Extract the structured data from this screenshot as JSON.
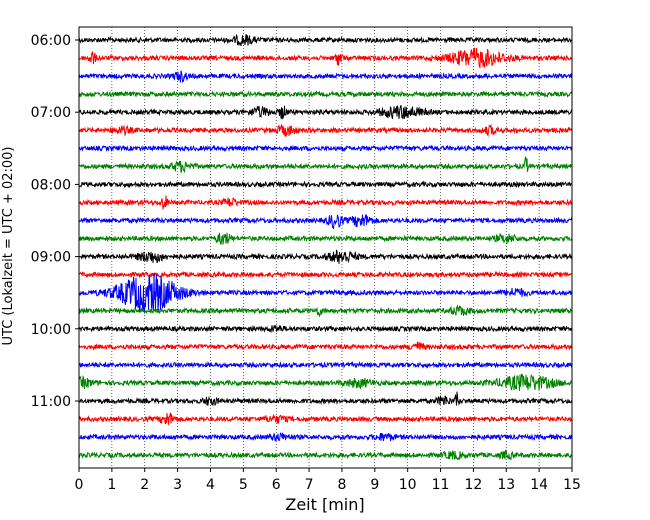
{
  "chart_data": {
    "type": "line",
    "title": "",
    "xlabel": "Zeit  [min]",
    "ylabel": "UTC (Lokalzeit = UTC + 02:00)",
    "xlim": [
      0,
      15
    ],
    "x_ticks": [
      "0",
      "1",
      "2",
      "3",
      "4",
      "5",
      "6",
      "7",
      "8",
      "9",
      "10",
      "11",
      "12",
      "13",
      "14",
      "15"
    ],
    "y_ticks": [
      "06:00",
      "07:00",
      "08:00",
      "09:00",
      "10:00",
      "11:00"
    ],
    "trace_interval_min": 15,
    "first_trace": "06:00",
    "trace_count": 24,
    "color_cycle": [
      "#000000",
      "#ff0000",
      "#0000ff",
      "#008000"
    ],
    "grid": "vertical dotted lines at every minute",
    "events": [
      {
        "trace": 0,
        "t": 5.0,
        "amp": 0.6,
        "width": 0.3
      },
      {
        "trace": 1,
        "t": 12.1,
        "amp": 1.2,
        "width": 0.8
      },
      {
        "trace": 1,
        "t": 0.4,
        "amp": 0.9,
        "width": 0.1
      },
      {
        "trace": 1,
        "t": 7.9,
        "amp": 0.9,
        "width": 0.1
      },
      {
        "trace": 2,
        "t": 3.1,
        "amp": 0.6,
        "width": 0.2
      },
      {
        "trace": 4,
        "t": 9.8,
        "amp": 0.8,
        "width": 0.6
      },
      {
        "trace": 4,
        "t": 6.2,
        "amp": 0.9,
        "width": 0.1
      },
      {
        "trace": 4,
        "t": 5.5,
        "amp": 0.6,
        "width": 0.3
      },
      {
        "trace": 5,
        "t": 1.3,
        "amp": 0.4,
        "width": 0.3
      },
      {
        "trace": 5,
        "t": 6.3,
        "amp": 0.6,
        "width": 0.3
      },
      {
        "trace": 5,
        "t": 12.5,
        "amp": 0.5,
        "width": 0.2
      },
      {
        "trace": 7,
        "t": 3.1,
        "amp": 0.6,
        "width": 0.3
      },
      {
        "trace": 7,
        "t": 13.6,
        "amp": 1.3,
        "width": 0.05
      },
      {
        "trace": 9,
        "t": 2.6,
        "amp": 0.9,
        "width": 0.1
      },
      {
        "trace": 9,
        "t": 4.6,
        "amp": 0.5,
        "width": 0.2
      },
      {
        "trace": 10,
        "t": 7.8,
        "amp": 1.0,
        "width": 0.2
      },
      {
        "trace": 10,
        "t": 8.6,
        "amp": 0.8,
        "width": 0.3
      },
      {
        "trace": 11,
        "t": 4.4,
        "amp": 0.8,
        "width": 0.2
      },
      {
        "trace": 11,
        "t": 13.0,
        "amp": 0.5,
        "width": 0.3
      },
      {
        "trace": 12,
        "t": 2.2,
        "amp": 0.7,
        "width": 0.4
      },
      {
        "trace": 12,
        "t": 8.0,
        "amp": 0.8,
        "width": 0.4
      },
      {
        "trace": 14,
        "t": 2.1,
        "amp": 2.6,
        "width": 0.9
      },
      {
        "trace": 14,
        "t": 13.3,
        "amp": 0.5,
        "width": 0.3
      },
      {
        "trace": 15,
        "t": 7.3,
        "amp": 0.5,
        "width": 0.1
      },
      {
        "trace": 15,
        "t": 11.6,
        "amp": 0.5,
        "width": 0.3
      },
      {
        "trace": 16,
        "t": 6.0,
        "amp": 0.4,
        "width": 0.2
      },
      {
        "trace": 17,
        "t": 10.3,
        "amp": 0.5,
        "width": 0.2
      },
      {
        "trace": 19,
        "t": 0.1,
        "amp": 0.6,
        "width": 0.3
      },
      {
        "trace": 19,
        "t": 8.5,
        "amp": 0.5,
        "width": 0.4
      },
      {
        "trace": 19,
        "t": 13.6,
        "amp": 1.0,
        "width": 0.8
      },
      {
        "trace": 20,
        "t": 4.0,
        "amp": 0.5,
        "width": 0.2
      },
      {
        "trace": 20,
        "t": 11.1,
        "amp": 0.6,
        "width": 0.2
      },
      {
        "trace": 20,
        "t": 11.5,
        "amp": 1.3,
        "width": 0.05
      },
      {
        "trace": 21,
        "t": 2.7,
        "amp": 0.8,
        "width": 0.2
      },
      {
        "trace": 21,
        "t": 6.0,
        "amp": 0.4,
        "width": 0.3
      },
      {
        "trace": 22,
        "t": 6.1,
        "amp": 0.4,
        "width": 0.3
      },
      {
        "trace": 22,
        "t": 9.3,
        "amp": 0.4,
        "width": 0.3
      },
      {
        "trace": 23,
        "t": 11.4,
        "amp": 0.4,
        "width": 0.3
      },
      {
        "trace": 23,
        "t": 13.0,
        "amp": 0.4,
        "width": 0.2
      }
    ]
  }
}
